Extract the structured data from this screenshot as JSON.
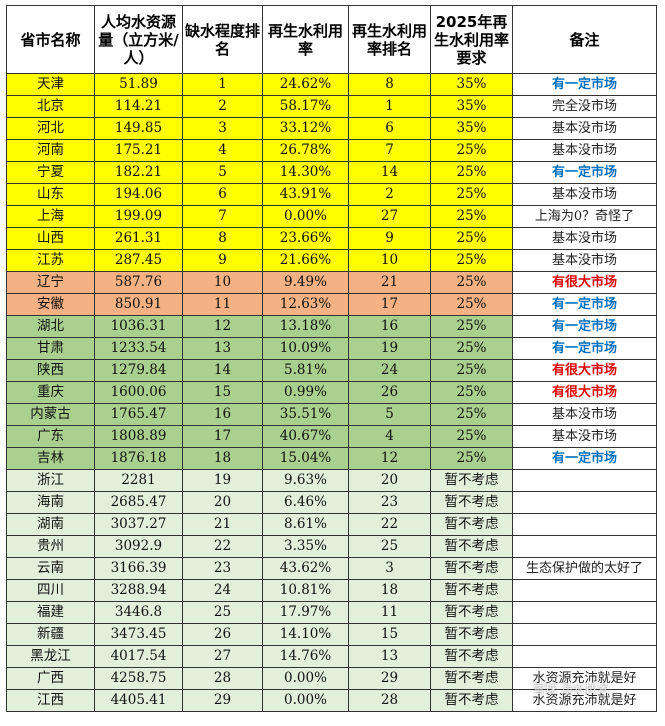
{
  "headers": [
    "省市名称",
    "人均水资源量（立方米/人）",
    "缺水程度排名",
    "再生水利用率",
    "再生水利用率排名",
    "2025年再生水利用率要求",
    "备注"
  ],
  "rows": [
    {
      "province": "天津",
      "water": "51.89",
      "rank": "1",
      "rate": "24.62%",
      "rate_rank": "8",
      "req": "35%",
      "note": "有一定市场",
      "color": "yellow",
      "note_style": "blue"
    },
    {
      "province": "北京",
      "water": "114.21",
      "rank": "2",
      "rate": "58.17%",
      "rate_rank": "1",
      "req": "35%",
      "note": "完全没市场",
      "color": "yellow",
      "note_style": "black"
    },
    {
      "province": "河北",
      "water": "149.85",
      "rank": "3",
      "rate": "33.12%",
      "rate_rank": "6",
      "req": "35%",
      "note": "基本没市场",
      "color": "yellow",
      "note_style": "black"
    },
    {
      "province": "河南",
      "water": "175.21",
      "rank": "4",
      "rate": "26.78%",
      "rate_rank": "7",
      "req": "25%",
      "note": "基本没市场",
      "color": "yellow",
      "note_style": "black"
    },
    {
      "province": "宁夏",
      "water": "182.21",
      "rank": "5",
      "rate": "14.30%",
      "rate_rank": "14",
      "req": "25%",
      "note": "有一定市场",
      "color": "yellow",
      "note_style": "blue"
    },
    {
      "province": "山东",
      "water": "194.06",
      "rank": "6",
      "rate": "43.91%",
      "rate_rank": "2",
      "req": "25%",
      "note": "基本没市场",
      "color": "yellow",
      "note_style": "black"
    },
    {
      "province": "上海",
      "water": "199.09",
      "rank": "7",
      "rate": "0.00%",
      "rate_rank": "27",
      "req": "25%",
      "note": "上海为0？奇怪了",
      "color": "yellow",
      "note_style": "black"
    },
    {
      "province": "山西",
      "water": "261.31",
      "rank": "8",
      "rate": "23.66%",
      "rate_rank": "9",
      "req": "25%",
      "note": "基本没市场",
      "color": "yellow",
      "note_style": "black"
    },
    {
      "province": "江苏",
      "water": "287.45",
      "rank": "9",
      "rate": "21.66%",
      "rate_rank": "10",
      "req": "25%",
      "note": "基本没市场",
      "color": "yellow",
      "note_style": "black"
    },
    {
      "province": "辽宁",
      "water": "587.76",
      "rank": "10",
      "rate": "9.49%",
      "rate_rank": "21",
      "req": "25%",
      "note": "有很大市场",
      "color": "orange",
      "note_style": "red"
    },
    {
      "province": "安徽",
      "water": "850.91",
      "rank": "11",
      "rate": "12.63%",
      "rate_rank": "17",
      "req": "25%",
      "note": "有一定市场",
      "color": "orange",
      "note_style": "blue"
    },
    {
      "province": "湖北",
      "water": "1036.31",
      "rank": "12",
      "rate": "13.18%",
      "rate_rank": "16",
      "req": "25%",
      "note": "有一定市场",
      "color": "green",
      "note_style": "blue"
    },
    {
      "province": "甘肃",
      "water": "1233.54",
      "rank": "13",
      "rate": "10.09%",
      "rate_rank": "19",
      "req": "25%",
      "note": "有一定市场",
      "color": "green",
      "note_style": "blue"
    },
    {
      "province": "陕西",
      "water": "1279.84",
      "rank": "14",
      "rate": "5.81%",
      "rate_rank": "24",
      "req": "25%",
      "note": "有很大市场",
      "color": "green",
      "note_style": "red"
    },
    {
      "province": "重庆",
      "water": "1600.06",
      "rank": "15",
      "rate": "0.99%",
      "rate_rank": "26",
      "req": "25%",
      "note": "有很大市场",
      "color": "green",
      "note_style": "red"
    },
    {
      "province": "内蒙古",
      "water": "1765.47",
      "rank": "16",
      "rate": "35.51%",
      "rate_rank": "5",
      "req": "25%",
      "note": "基本没市场",
      "color": "green",
      "note_style": "black"
    },
    {
      "province": "广东",
      "water": "1808.89",
      "rank": "17",
      "rate": "40.67%",
      "rate_rank": "4",
      "req": "25%",
      "note": "基本没市场",
      "color": "green",
      "note_style": "black"
    },
    {
      "province": "吉林",
      "water": "1876.18",
      "rank": "18",
      "rate": "15.04%",
      "rate_rank": "12",
      "req": "25%",
      "note": "有一定市场",
      "color": "green",
      "note_style": "blue"
    },
    {
      "province": "浙江",
      "water": "2281",
      "rank": "19",
      "rate": "9.63%",
      "rate_rank": "20",
      "req": "暂不考虑",
      "note": "",
      "color": "light",
      "note_style": "black"
    },
    {
      "province": "海南",
      "water": "2685.47",
      "rank": "20",
      "rate": "6.46%",
      "rate_rank": "23",
      "req": "暂不考虑",
      "note": "",
      "color": "light",
      "note_style": "black"
    },
    {
      "province": "湖南",
      "water": "3037.27",
      "rank": "21",
      "rate": "8.61%",
      "rate_rank": "22",
      "req": "暂不考虑",
      "note": "",
      "color": "light",
      "note_style": "black"
    },
    {
      "province": "贵州",
      "water": "3092.9",
      "rank": "22",
      "rate": "3.35%",
      "rate_rank": "25",
      "req": "暂不考虑",
      "note": "",
      "color": "light",
      "note_style": "black"
    },
    {
      "province": "云南",
      "water": "3166.39",
      "rank": "23",
      "rate": "43.62%",
      "rate_rank": "3",
      "req": "暂不考虑",
      "note": "生态保护做的太好了",
      "color": "light",
      "note_style": "black"
    },
    {
      "province": "四川",
      "water": "3288.94",
      "rank": "24",
      "rate": "10.81%",
      "rate_rank": "18",
      "req": "暂不考虑",
      "note": "",
      "color": "light",
      "note_style": "black"
    },
    {
      "province": "福建",
      "water": "3446.8",
      "rank": "25",
      "rate": "17.97%",
      "rate_rank": "11",
      "req": "暂不考虑",
      "note": "",
      "color": "light",
      "note_style": "black"
    },
    {
      "province": "新疆",
      "water": "3473.45",
      "rank": "26",
      "rate": "14.10%",
      "rate_rank": "15",
      "req": "暂不考虑",
      "note": "",
      "color": "light",
      "note_style": "black"
    },
    {
      "province": "黑龙江",
      "water": "4017.54",
      "rank": "27",
      "rate": "14.76%",
      "rate_rank": "13",
      "req": "暂不考虑",
      "note": "",
      "color": "light",
      "note_style": "black"
    },
    {
      "province": "广西",
      "water": "4258.75",
      "rank": "28",
      "rate": "0.00%",
      "rate_rank": "29",
      "req": "暂不考虑",
      "note": "水资源充沛就是好",
      "color": "light",
      "note_style": "black"
    },
    {
      "province": "江西",
      "water": "4405.41",
      "rank": "29",
      "rate": "0.00%",
      "rate_rank": "28",
      "req": "暂不考虑",
      "note": "水资源充沛就是好",
      "color": "light",
      "note_style": "black"
    }
  ],
  "colors": {
    "yellow": "#ffff00",
    "orange": "#f4b183",
    "green": "#a9d08e",
    "light": "#e2efda",
    "blue_text": "#0070c0",
    "red_text": "#e00000"
  },
  "watermark": "雪球 净水技术"
}
